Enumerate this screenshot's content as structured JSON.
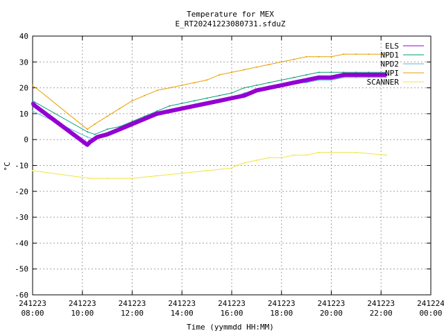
{
  "chart_data": {
    "type": "line",
    "title": "Temperature for MEX",
    "subtitle": "E_RT20241223080731.sfduZ",
    "xlabel": "Time (yymmdd HH:MM)",
    "ylabel": "°C",
    "xlim": [
      8,
      24
    ],
    "ylim": [
      -60,
      40
    ],
    "grid": true,
    "legend_position": "top-right",
    "x_ticks": [
      {
        "value": 8,
        "date": "241223",
        "time": "08:00"
      },
      {
        "value": 10,
        "date": "241223",
        "time": "10:00"
      },
      {
        "value": 12,
        "date": "241223",
        "time": "12:00"
      },
      {
        "value": 14,
        "date": "241223",
        "time": "14:00"
      },
      {
        "value": 16,
        "date": "241223",
        "time": "16:00"
      },
      {
        "value": 18,
        "date": "241223",
        "time": "18:00"
      },
      {
        "value": 20,
        "date": "241223",
        "time": "20:00"
      },
      {
        "value": 22,
        "date": "241223",
        "time": "22:00"
      },
      {
        "value": 24,
        "date": "241224",
        "time": "00:00"
      }
    ],
    "y_ticks": [
      "40",
      "30",
      "20",
      "10",
      "0",
      "-10",
      "-20",
      "-30",
      "-40",
      "-50",
      "-60"
    ],
    "y_tick_values": [
      40,
      30,
      20,
      10,
      0,
      -10,
      -20,
      -30,
      -40,
      -50,
      -60
    ],
    "series": [
      {
        "name": "ELS",
        "color": "#9400d3",
        "width": 6,
        "x": [
          8.0,
          8.1,
          10.2,
          10.3,
          10.6,
          11.0,
          11.5,
          12.0,
          12.5,
          13.0,
          13.5,
          14.0,
          14.5,
          15.0,
          15.5,
          16.0,
          16.5,
          17.0,
          17.5,
          18.0,
          18.5,
          19.0,
          19.5,
          20.0,
          20.5,
          21.0,
          21.5,
          22.2
        ],
        "y": [
          14,
          13,
          -2,
          -1,
          1,
          2,
          4,
          6,
          8,
          10,
          11,
          12,
          13,
          14,
          15,
          16,
          17,
          19,
          20,
          21,
          22,
          23,
          24,
          24,
          25,
          25,
          25,
          25
        ]
      },
      {
        "name": "NPD1",
        "color": "#009e73",
        "width": 1,
        "x": [
          8.0,
          10.2,
          10.5,
          11.0,
          11.5,
          12.0,
          12.5,
          13.0,
          13.5,
          14.0,
          14.5,
          15.0,
          15.5,
          16.0,
          16.5,
          17.0,
          17.5,
          18.0,
          18.5,
          19.0,
          19.5,
          20.0,
          20.5,
          21.0,
          21.5,
          22.2
        ],
        "y": [
          15,
          3,
          2,
          4,
          5,
          7,
          9,
          11,
          13,
          14,
          15,
          16,
          17,
          18,
          20,
          21,
          22,
          23,
          24,
          25,
          26,
          26,
          26,
          26,
          26,
          26
        ]
      },
      {
        "name": "NPD2",
        "color": "#56b4e9",
        "width": 1,
        "x": [
          8.0,
          10.2,
          10.5,
          11.0,
          11.5,
          12.0,
          12.5,
          13.0,
          13.5,
          14.0,
          14.5,
          15.0,
          15.5,
          16.0,
          16.5,
          17.0,
          17.5,
          18.0,
          18.5,
          19.0,
          19.5,
          20.0,
          20.5,
          21.0,
          21.5,
          22.2
        ],
        "y": [
          11,
          1,
          0,
          2,
          4,
          6,
          8,
          10,
          11,
          12,
          13,
          14,
          15,
          16,
          18,
          19,
          20,
          21,
          22,
          22,
          23,
          23,
          24,
          24,
          24,
          24
        ]
      },
      {
        "name": "NPI",
        "color": "#e69f00",
        "width": 1,
        "x": [
          8.0,
          10.2,
          10.5,
          11.0,
          11.5,
          12.0,
          12.5,
          13.0,
          13.5,
          14.0,
          14.5,
          15.0,
          15.5,
          16.0,
          16.5,
          17.0,
          17.5,
          18.0,
          18.5,
          19.0,
          19.5,
          20.0,
          20.5,
          21.0,
          21.5,
          22.2
        ],
        "y": [
          21,
          4,
          6,
          9,
          12,
          15,
          17,
          19,
          20,
          21,
          22,
          23,
          25,
          26,
          27,
          28,
          29,
          30,
          31,
          32,
          32,
          32,
          33,
          33,
          33,
          33
        ]
      },
      {
        "name": "SCANNER",
        "color": "#f0e442",
        "width": 1,
        "x": [
          8.0,
          10.3,
          11.0,
          12.0,
          13.0,
          14.0,
          15.0,
          16.0,
          16.2,
          16.5,
          17.0,
          17.5,
          18.0,
          18.5,
          19.0,
          19.5,
          20.0,
          21.0,
          22.2
        ],
        "y": [
          -12,
          -15,
          -15,
          -15,
          -14,
          -13,
          -12,
          -11,
          -10,
          -9,
          -8,
          -7,
          -7,
          -6,
          -6,
          -5,
          -5,
          -5,
          -6
        ]
      }
    ]
  }
}
